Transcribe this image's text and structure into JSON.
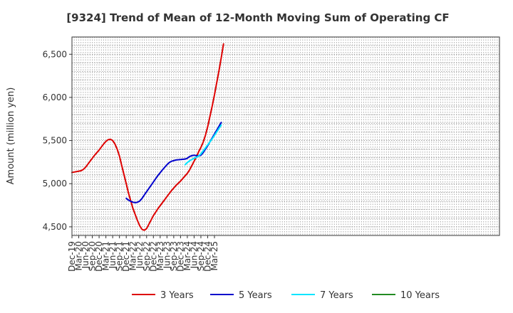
{
  "chart_data": {
    "type": "line",
    "title": "[9324]  Trend of Mean of 12-Month Moving Sum of Operating CF",
    "xlabel": "",
    "ylabel": "Amount (million yen)",
    "ylim": [
      4400,
      6700
    ],
    "y_ticks": [
      4500,
      5000,
      5500,
      6000,
      6500
    ],
    "y_tick_labels": [
      "4,500",
      "5,000",
      "5,500",
      "6,000",
      "6,500"
    ],
    "x_tick_labels": [
      "Dec-19",
      "Mar-20",
      "Jun-20",
      "Sep-20",
      "Dec-20",
      "Mar-21",
      "Jun-21",
      "Sep-21",
      "Dec-21",
      "Mar-22",
      "Jun-22",
      "Sep-22",
      "Dec-22",
      "Mar-23",
      "Jun-23",
      "Sep-23",
      "Dec-23",
      "Mar-24",
      "Jun-24",
      "Sep-24",
      "Dec-24",
      "Mar-25"
    ],
    "x_range_months": [
      0,
      63
    ],
    "grid": true,
    "legend_position": "bottom",
    "series": [
      {
        "name": "3 Years",
        "color": "#dd0000",
        "points": [
          [
            0,
            5130
          ],
          [
            2,
            5140
          ],
          [
            4,
            5150
          ],
          [
            5,
            5165
          ],
          [
            6,
            5190
          ],
          [
            8,
            5260
          ],
          [
            10,
            5330
          ],
          [
            12,
            5390
          ],
          [
            14,
            5460
          ],
          [
            15,
            5490
          ],
          [
            16,
            5510
          ],
          [
            17,
            5515
          ],
          [
            18,
            5500
          ],
          [
            19,
            5460
          ],
          [
            20,
            5400
          ],
          [
            21,
            5320
          ],
          [
            22,
            5210
          ],
          [
            24,
            5000
          ],
          [
            25,
            4890
          ],
          [
            26,
            4800
          ],
          [
            27,
            4710
          ],
          [
            28,
            4640
          ],
          [
            29,
            4570
          ],
          [
            30,
            4510
          ],
          [
            31,
            4470
          ],
          [
            32,
            4460
          ],
          [
            33,
            4480
          ],
          [
            34,
            4530
          ],
          [
            35,
            4580
          ],
          [
            36,
            4630
          ],
          [
            38,
            4710
          ],
          [
            40,
            4780
          ],
          [
            42,
            4850
          ],
          [
            44,
            4920
          ],
          [
            45,
            4950
          ],
          [
            46,
            4980
          ],
          [
            48,
            5030
          ],
          [
            50,
            5090
          ],
          [
            51,
            5120
          ],
          [
            52,
            5160
          ],
          [
            53,
            5210
          ],
          [
            54,
            5260
          ],
          [
            55,
            5310
          ],
          [
            56,
            5370
          ],
          [
            57,
            5420
          ],
          [
            58,
            5480
          ],
          [
            59,
            5560
          ],
          [
            60,
            5660
          ],
          [
            61,
            5780
          ],
          [
            62,
            5900
          ],
          [
            63,
            6030
          ],
          [
            64,
            6170
          ],
          [
            65,
            6310
          ],
          [
            66,
            6460
          ],
          [
            67,
            6620
          ]
        ]
      },
      {
        "name": "5 Years",
        "color": "#0000cc",
        "points": [
          [
            24,
            4830
          ],
          [
            25,
            4810
          ],
          [
            26,
            4795
          ],
          [
            27,
            4785
          ],
          [
            28,
            4780
          ],
          [
            29,
            4785
          ],
          [
            30,
            4800
          ],
          [
            31,
            4830
          ],
          [
            32,
            4870
          ],
          [
            34,
            4945
          ],
          [
            36,
            5020
          ],
          [
            38,
            5095
          ],
          [
            40,
            5160
          ],
          [
            42,
            5220
          ],
          [
            43,
            5245
          ],
          [
            44,
            5260
          ],
          [
            46,
            5275
          ],
          [
            48,
            5280
          ],
          [
            50,
            5285
          ],
          [
            51,
            5295
          ],
          [
            52,
            5315
          ],
          [
            53,
            5325
          ],
          [
            54,
            5330
          ],
          [
            55,
            5325
          ],
          [
            56,
            5320
          ],
          [
            57,
            5330
          ],
          [
            58,
            5360
          ],
          [
            59,
            5400
          ],
          [
            60,
            5440
          ],
          [
            62,
            5530
          ],
          [
            64,
            5620
          ],
          [
            66,
            5710
          ]
        ]
      },
      {
        "name": "7 Years",
        "color": "#00e5ff",
        "points": [
          [
            50,
            5220
          ],
          [
            51,
            5245
          ],
          [
            52,
            5265
          ],
          [
            53,
            5280
          ],
          [
            54,
            5295
          ],
          [
            55,
            5305
          ],
          [
            56,
            5320
          ],
          [
            57,
            5345
          ],
          [
            58,
            5380
          ],
          [
            60,
            5450
          ],
          [
            62,
            5520
          ],
          [
            64,
            5600
          ],
          [
            66,
            5680
          ]
        ]
      },
      {
        "name": "10 Years",
        "color": "#228b22",
        "points": []
      }
    ]
  }
}
